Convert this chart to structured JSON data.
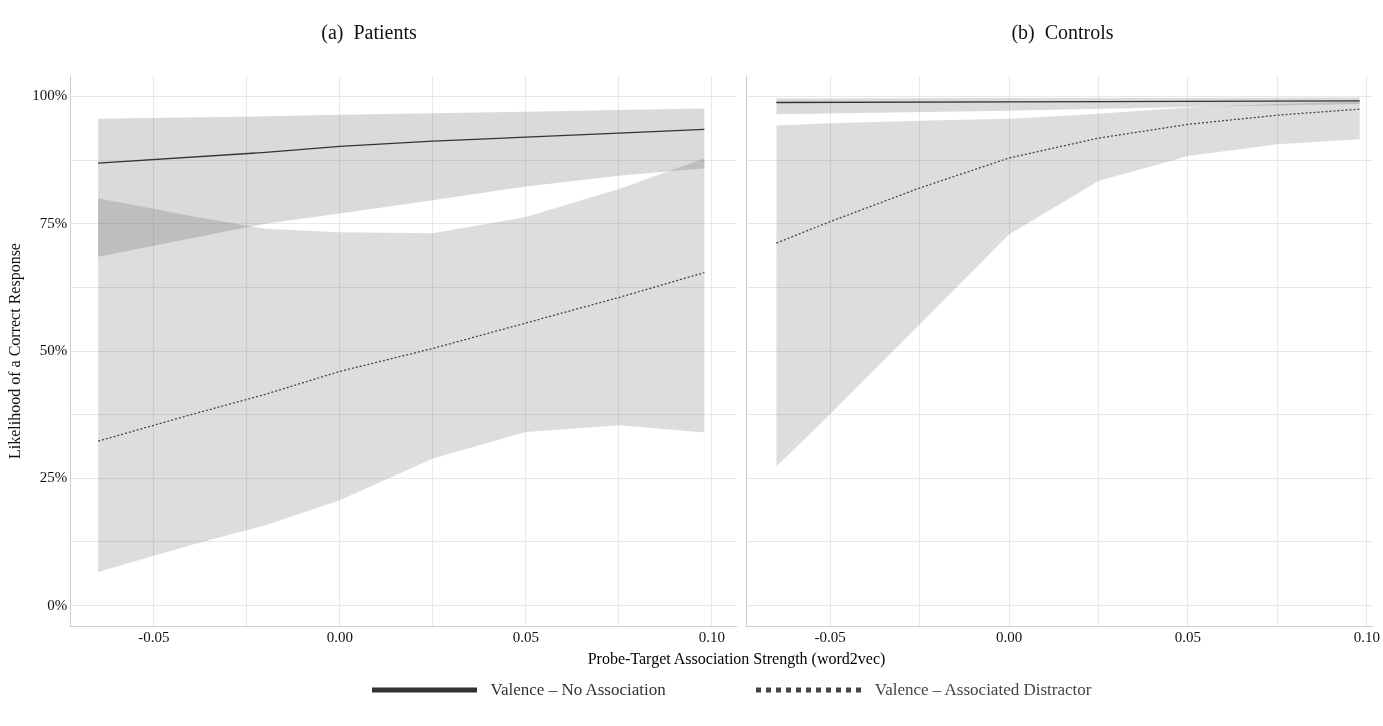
{
  "chart_data": [
    {
      "type": "line",
      "title": "(a)  Patients",
      "xlabel": "Probe-Target Association Strength (word2vec)",
      "ylabel": "Likelihood of a Correct Response",
      "xlim": [
        -0.0725,
        0.1065
      ],
      "ylim": [
        -4,
        104
      ],
      "xticks": [
        {
          "value": -0.05,
          "label": "-0.05"
        },
        {
          "value": -0.025,
          "label": null
        },
        {
          "value": 0,
          "label": "0.00"
        },
        {
          "value": 0.025,
          "label": null
        },
        {
          "value": 0.05,
          "label": "0.05"
        },
        {
          "value": 0.075,
          "label": null
        },
        {
          "value": 0.1,
          "label": "0.10"
        }
      ],
      "yticks": [
        {
          "value": 0,
          "label": "0%"
        },
        {
          "value": 12.5,
          "label": null
        },
        {
          "value": 25,
          "label": "25%"
        },
        {
          "value": 37.5,
          "label": null
        },
        {
          "value": 50,
          "label": "50%"
        },
        {
          "value": 62.5,
          "label": null
        },
        {
          "value": 75,
          "label": "75%"
        },
        {
          "value": 87.5,
          "label": null
        },
        {
          "value": 100,
          "label": "100%"
        }
      ],
      "grid": true,
      "legend": "bottom",
      "marker": "none",
      "series": [
        {
          "name": "Valence – No Association",
          "color": "#333333",
          "line_style": "solid",
          "x": [
            -0.065,
            -0.02,
            0,
            0.025,
            0.05,
            0.075,
            0.098
          ],
          "values": [
            86.9,
            89.0,
            90.2,
            91.2,
            92.0,
            92.8,
            93.5
          ],
          "lower": [
            68.5,
            75,
            77,
            79.6,
            82.3,
            84.4,
            85.9
          ],
          "upper": [
            95.6,
            96.1,
            96.4,
            96.7,
            97.0,
            97.3,
            97.6
          ]
        },
        {
          "name": "Valence – Associated Distractor",
          "color": "#444444",
          "line_style": "dotted",
          "x": [
            -0.065,
            -0.04,
            -0.02,
            0,
            0.025,
            0.05,
            0.075,
            0.098
          ],
          "values": [
            32.3,
            37.5,
            41.5,
            46.0,
            50.5,
            55.5,
            60.5,
            65.4
          ],
          "lower": [
            6.6,
            11.9,
            15.8,
            20.7,
            28.9,
            34.1,
            35.4,
            34.0
          ],
          "upper": [
            80,
            76.5,
            74,
            73.3,
            73.1,
            76.3,
            81.8,
            87.8
          ]
        }
      ]
    },
    {
      "type": "line",
      "title": "(b)  Controls",
      "xlim": [
        -0.0735,
        0.1015
      ],
      "ylim": [
        -4,
        104
      ],
      "tick_labels": "x",
      "xticks": [
        {
          "value": -0.05,
          "label": "-0.05"
        },
        {
          "value": -0.025,
          "label": null
        },
        {
          "value": 0,
          "label": "0.00"
        },
        {
          "value": 0.025,
          "label": null
        },
        {
          "value": 0.05,
          "label": "0.05"
        },
        {
          "value": 0.075,
          "label": null
        },
        {
          "value": 0.1,
          "label": "0.10"
        }
      ],
      "yticks": [
        {
          "value": 0,
          "label": null
        },
        {
          "value": 12.5,
          "label": null
        },
        {
          "value": 25,
          "label": null
        },
        {
          "value": 37.5,
          "label": null
        },
        {
          "value": 50,
          "label": null
        },
        {
          "value": 62.5,
          "label": null
        },
        {
          "value": 75,
          "label": null
        },
        {
          "value": 87.5,
          "label": null
        },
        {
          "value": 100,
          "label": null
        }
      ],
      "grid": true,
      "marker": "none",
      "series": [
        {
          "color": "#333333",
          "line_style": "solid",
          "x": [
            -0.065,
            0,
            0.05,
            0.098
          ],
          "values": [
            98.8,
            98.9,
            99.0,
            99.1
          ],
          "lower": [
            96.5,
            97.2,
            97.9,
            98.5
          ],
          "upper": [
            99.6,
            99.7,
            99.7,
            99.8
          ]
        },
        {
          "color": "#444444",
          "line_style": "dotted",
          "x": [
            -0.065,
            -0.05,
            -0.025,
            0,
            0.025,
            0.05,
            0.075,
            0.098
          ],
          "values": [
            71.2,
            75.4,
            82,
            87.9,
            91.8,
            94.5,
            96.3,
            97.5
          ],
          "lower": [
            27.3,
            37.6,
            55.2,
            72.9,
            83.4,
            88.3,
            90.6,
            91.6
          ],
          "upper": [
            94.3,
            94.7,
            95.2,
            95.6,
            96.6,
            97.8,
            98.5,
            99
          ]
        }
      ]
    }
  ]
}
